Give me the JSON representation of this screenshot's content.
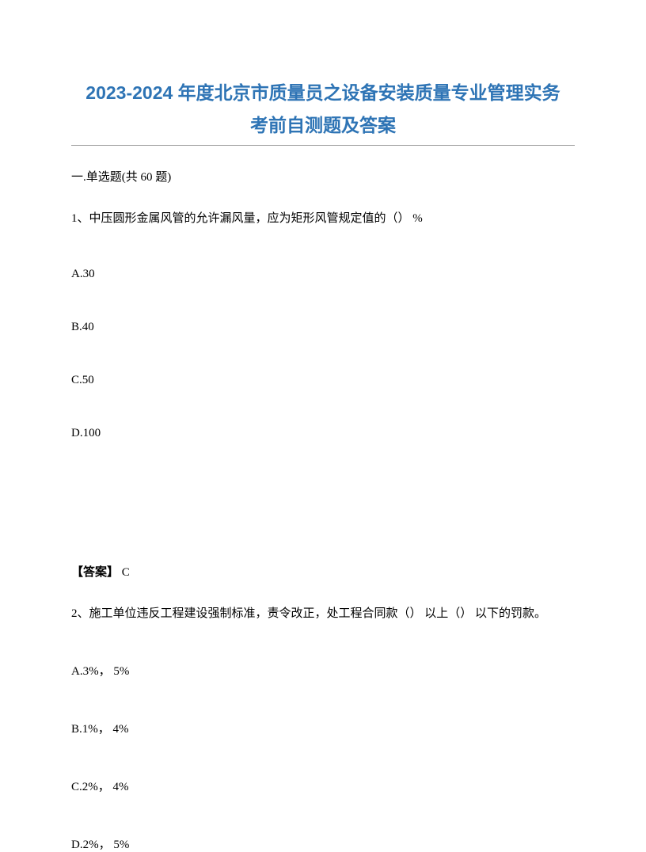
{
  "title_line1": "2023-2024 年度北京市质量员之设备安装质量专业管理实务",
  "title_line2": "考前自测题及答案",
  "section_header": "一.单选题(共 60 题)",
  "question1": {
    "text": "1、中压圆形金属风管的允许漏风量，应为矩形风管规定值的（） %",
    "options": {
      "a": "A.30",
      "b": "B.40",
      "c": "C.50",
      "d": "D.100"
    },
    "answer_label": "【答案】",
    "answer_value": " C"
  },
  "question2": {
    "text": "2、施工单位违反工程建设强制标准，责令改正，处工程合同款（） 以上（） 以下的罚款。",
    "options": {
      "a": "A.3%， 5%",
      "b": "B.1%，  4%",
      "c": "C.2%，  4%",
      "d": "D.2%， 5%"
    }
  }
}
